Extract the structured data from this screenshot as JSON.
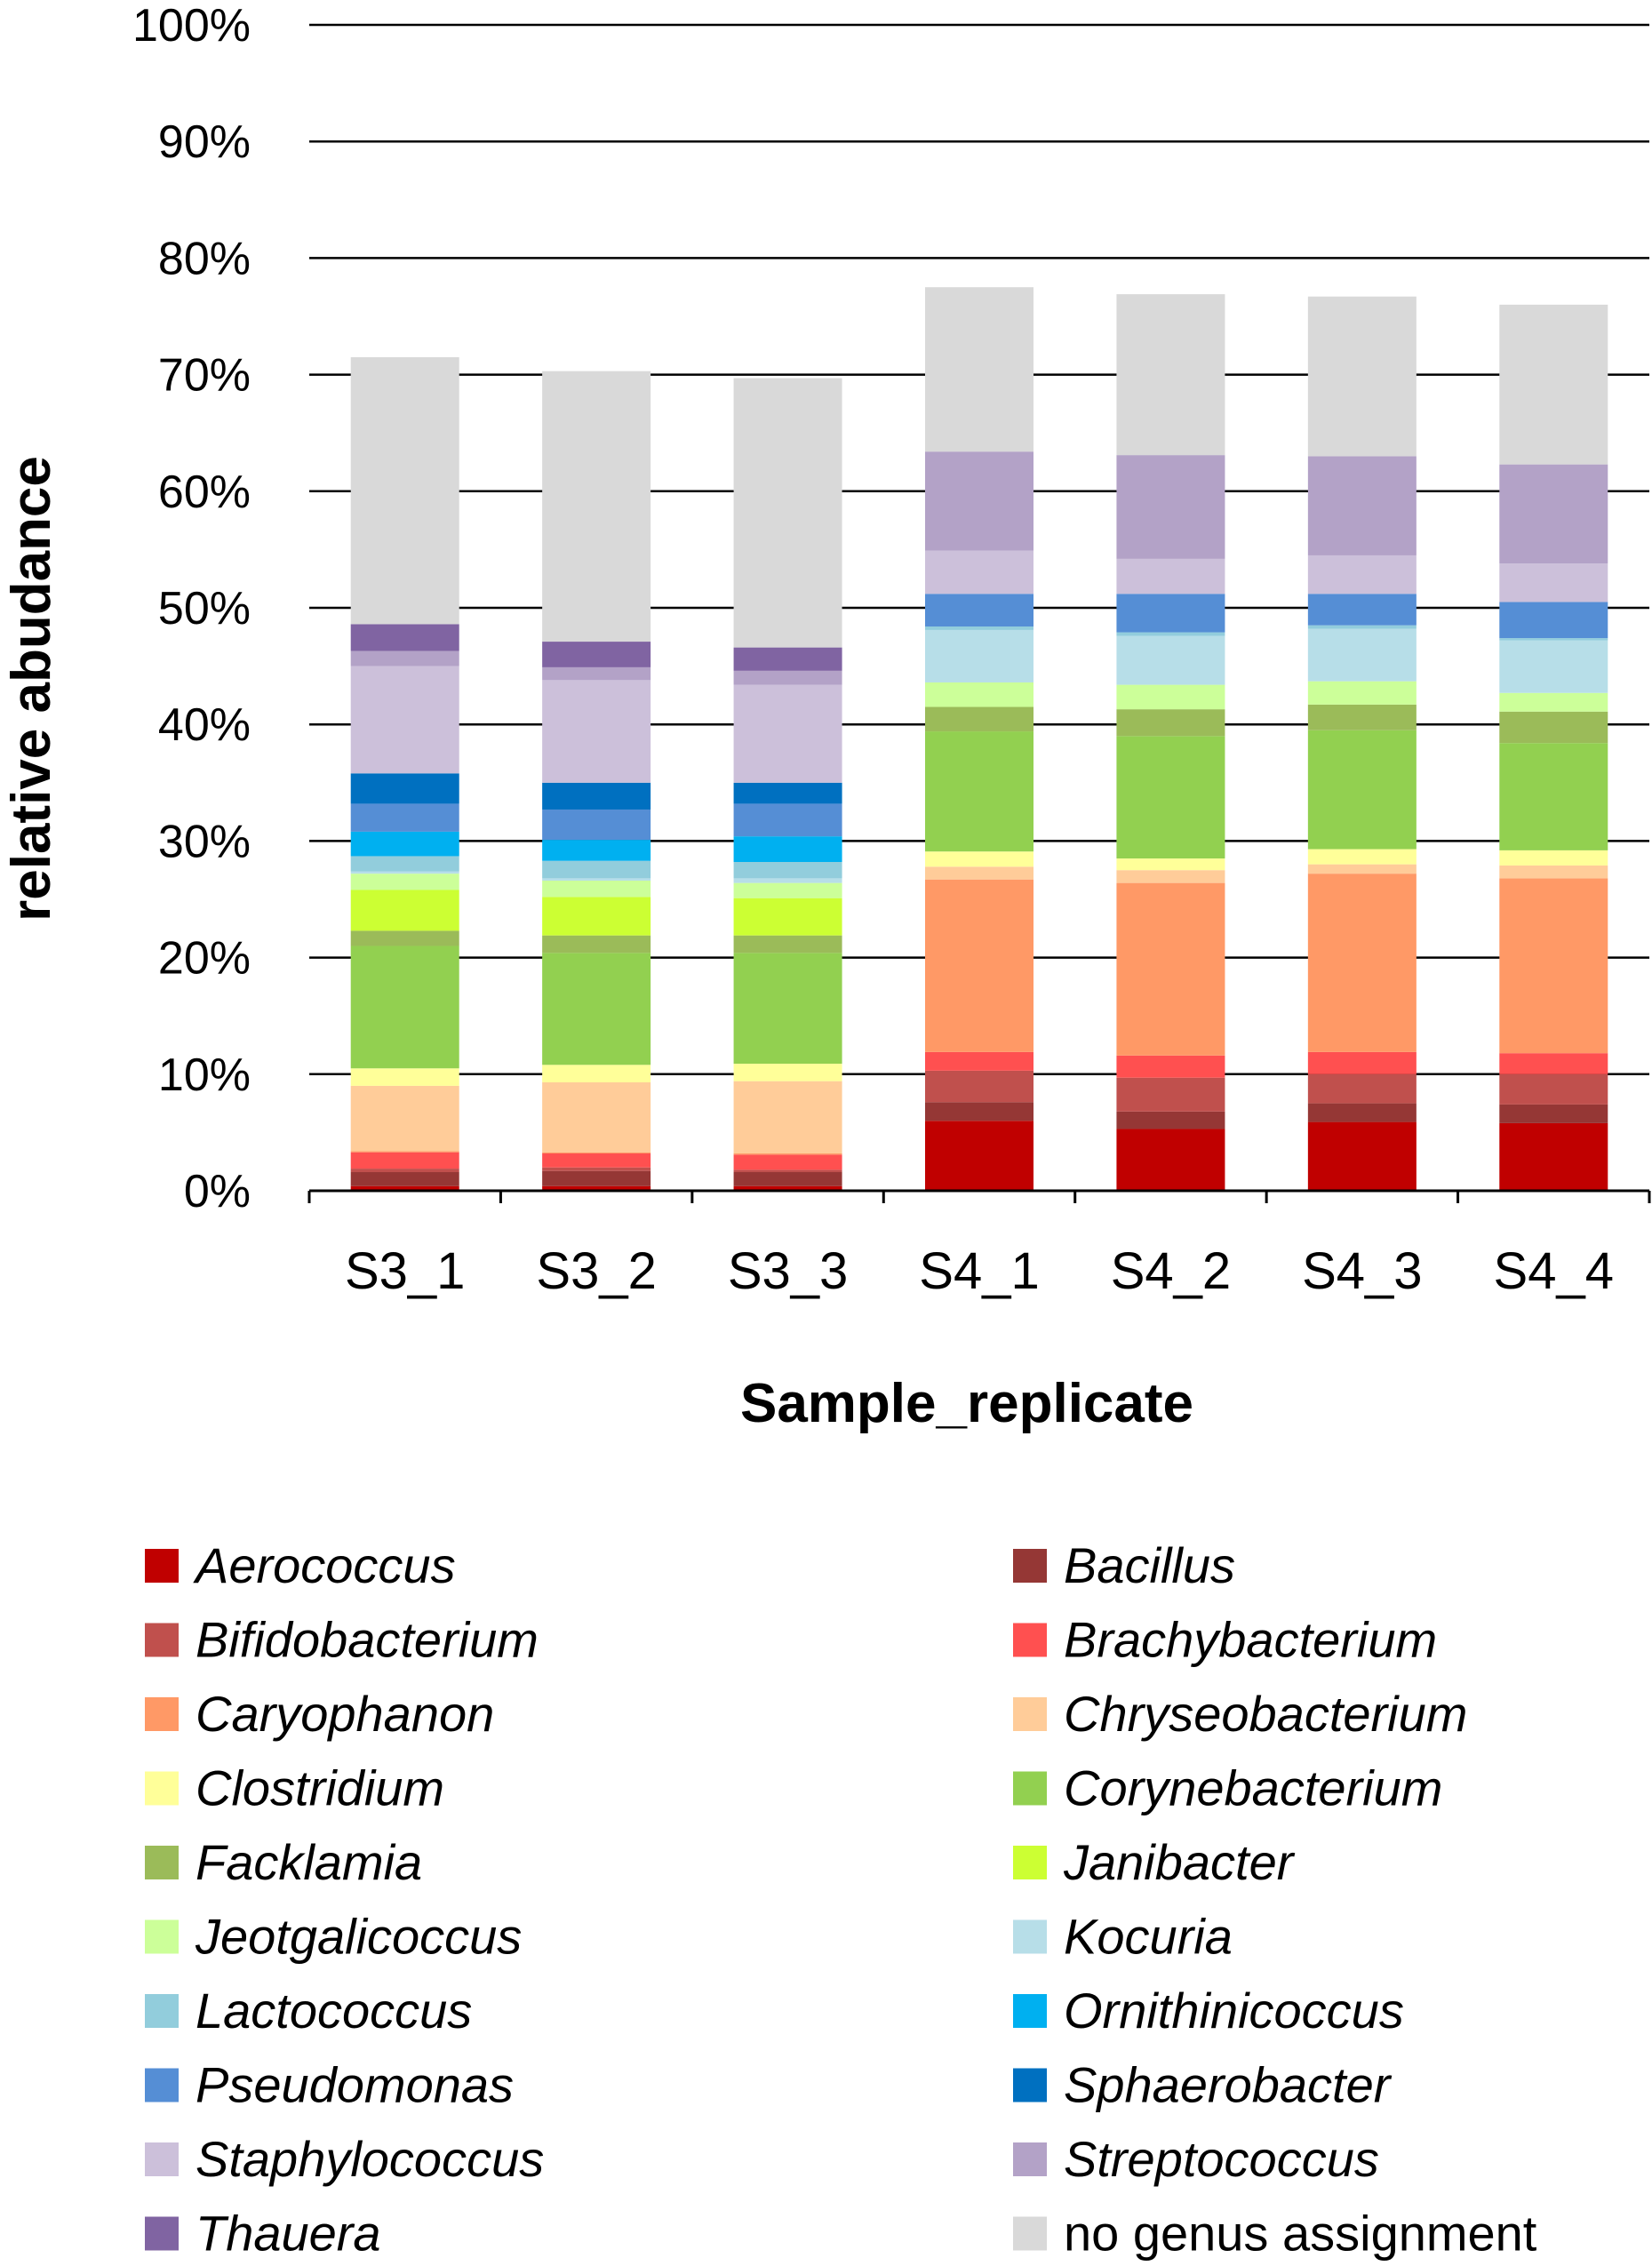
{
  "chart_data": {
    "type": "stacked-bar",
    "title": "",
    "xlabel": "Sample_replicate",
    "ylabel": "relative abudance",
    "ylim": [
      0,
      100
    ],
    "yticks": [
      "0%",
      "10%",
      "20%",
      "30%",
      "40%",
      "50%",
      "60%",
      "70%",
      "80%",
      "90%",
      "100%"
    ],
    "grid": true,
    "legend_position": "bottom",
    "categories": [
      "S3_1",
      "S3_2",
      "S3_3",
      "S4_1",
      "S4_2",
      "S4_3",
      "S4_4"
    ],
    "series": [
      {
        "name": "Aerococcus",
        "italic": true,
        "color": "#C00000",
        "values": [
          0.4,
          0.4,
          0.4,
          6.0,
          5.3,
          5.9,
          5.8
        ]
      },
      {
        "name": "Bacillus",
        "italic": true,
        "color": "#953735",
        "values": [
          1.2,
          1.3,
          1.2,
          1.6,
          1.5,
          1.6,
          1.6
        ]
      },
      {
        "name": "Bifidobacterium",
        "italic": true,
        "color": "#C0504D",
        "values": [
          0.3,
          0.3,
          0.2,
          2.7,
          2.9,
          2.5,
          2.6
        ]
      },
      {
        "name": "Brachybacterium",
        "italic": true,
        "color": "#FF5050",
        "values": [
          1.4,
          1.2,
          1.3,
          1.6,
          1.9,
          1.9,
          1.8
        ]
      },
      {
        "name": "Caryophanon",
        "italic": true,
        "color": "#FF9966",
        "values": [
          0.1,
          0.1,
          0.1,
          14.8,
          14.8,
          15.3,
          15.0
        ]
      },
      {
        "name": "Chryseobacterium",
        "italic": true,
        "color": "#FFCC99",
        "values": [
          5.6,
          6.0,
          6.2,
          1.1,
          1.1,
          0.8,
          1.1
        ]
      },
      {
        "name": "Clostridium",
        "italic": true,
        "color": "#FFFF99",
        "values": [
          1.5,
          1.5,
          1.5,
          1.3,
          1.0,
          1.3,
          1.3
        ]
      },
      {
        "name": "Corynebacterium",
        "italic": true,
        "color": "#92D050",
        "values": [
          10.5,
          9.6,
          9.5,
          10.3,
          10.5,
          10.2,
          9.2
        ]
      },
      {
        "name": "Facklamia",
        "italic": true,
        "color": "#9BBB59",
        "values": [
          1.3,
          1.5,
          1.5,
          2.1,
          2.3,
          2.2,
          2.7
        ]
      },
      {
        "name": "Janibacter",
        "italic": true,
        "color": "#CCFF33",
        "values": [
          3.5,
          3.3,
          3.2,
          0.0,
          0.0,
          0.0,
          0.0
        ]
      },
      {
        "name": "Jeotgalicoccus",
        "italic": true,
        "color": "#CCFF99",
        "values": [
          1.4,
          1.4,
          1.3,
          2.1,
          2.1,
          2.0,
          1.6
        ]
      },
      {
        "name": "Kocuria",
        "italic": true,
        "color": "#B7DEE8",
        "values": [
          0.2,
          0.2,
          0.4,
          4.5,
          4.2,
          4.5,
          4.5
        ]
      },
      {
        "name": "Lactococcus",
        "italic": true,
        "color": "#92CDDC",
        "values": [
          1.3,
          1.5,
          1.4,
          0.3,
          0.3,
          0.3,
          0.2
        ]
      },
      {
        "name": "Ornithinicoccus",
        "italic": true,
        "color": "#00B0F0",
        "values": [
          2.1,
          1.8,
          2.2,
          0.0,
          0.0,
          0.0,
          0.0
        ]
      },
      {
        "name": "Pseudomonas",
        "italic": true,
        "color": "#558ED5",
        "values": [
          2.4,
          2.6,
          2.8,
          2.8,
          3.3,
          2.7,
          3.1
        ]
      },
      {
        "name": "Sphaerobacter",
        "italic": true,
        "color": "#0070C0",
        "values": [
          2.6,
          2.3,
          1.8,
          0.0,
          0.0,
          0.0,
          0.0
        ]
      },
      {
        "name": "Staphylococcus",
        "italic": true,
        "color": "#CCC0DA",
        "values": [
          9.2,
          8.8,
          8.4,
          3.7,
          3.0,
          3.3,
          3.3
        ]
      },
      {
        "name": "Streptococcus",
        "italic": true,
        "color": "#B3A2C7",
        "values": [
          1.3,
          1.1,
          1.2,
          8.5,
          8.9,
          8.5,
          8.5
        ]
      },
      {
        "name": "Thauera",
        "italic": true,
        "color": "#8064A2",
        "values": [
          2.3,
          2.2,
          2.0,
          0.0,
          0.0,
          0.0,
          0.0
        ]
      },
      {
        "name": "no genus assignment",
        "italic": false,
        "color": "#D9D9D9",
        "values": [
          22.9,
          23.2,
          23.1,
          14.1,
          13.8,
          13.7,
          13.7
        ]
      }
    ]
  }
}
